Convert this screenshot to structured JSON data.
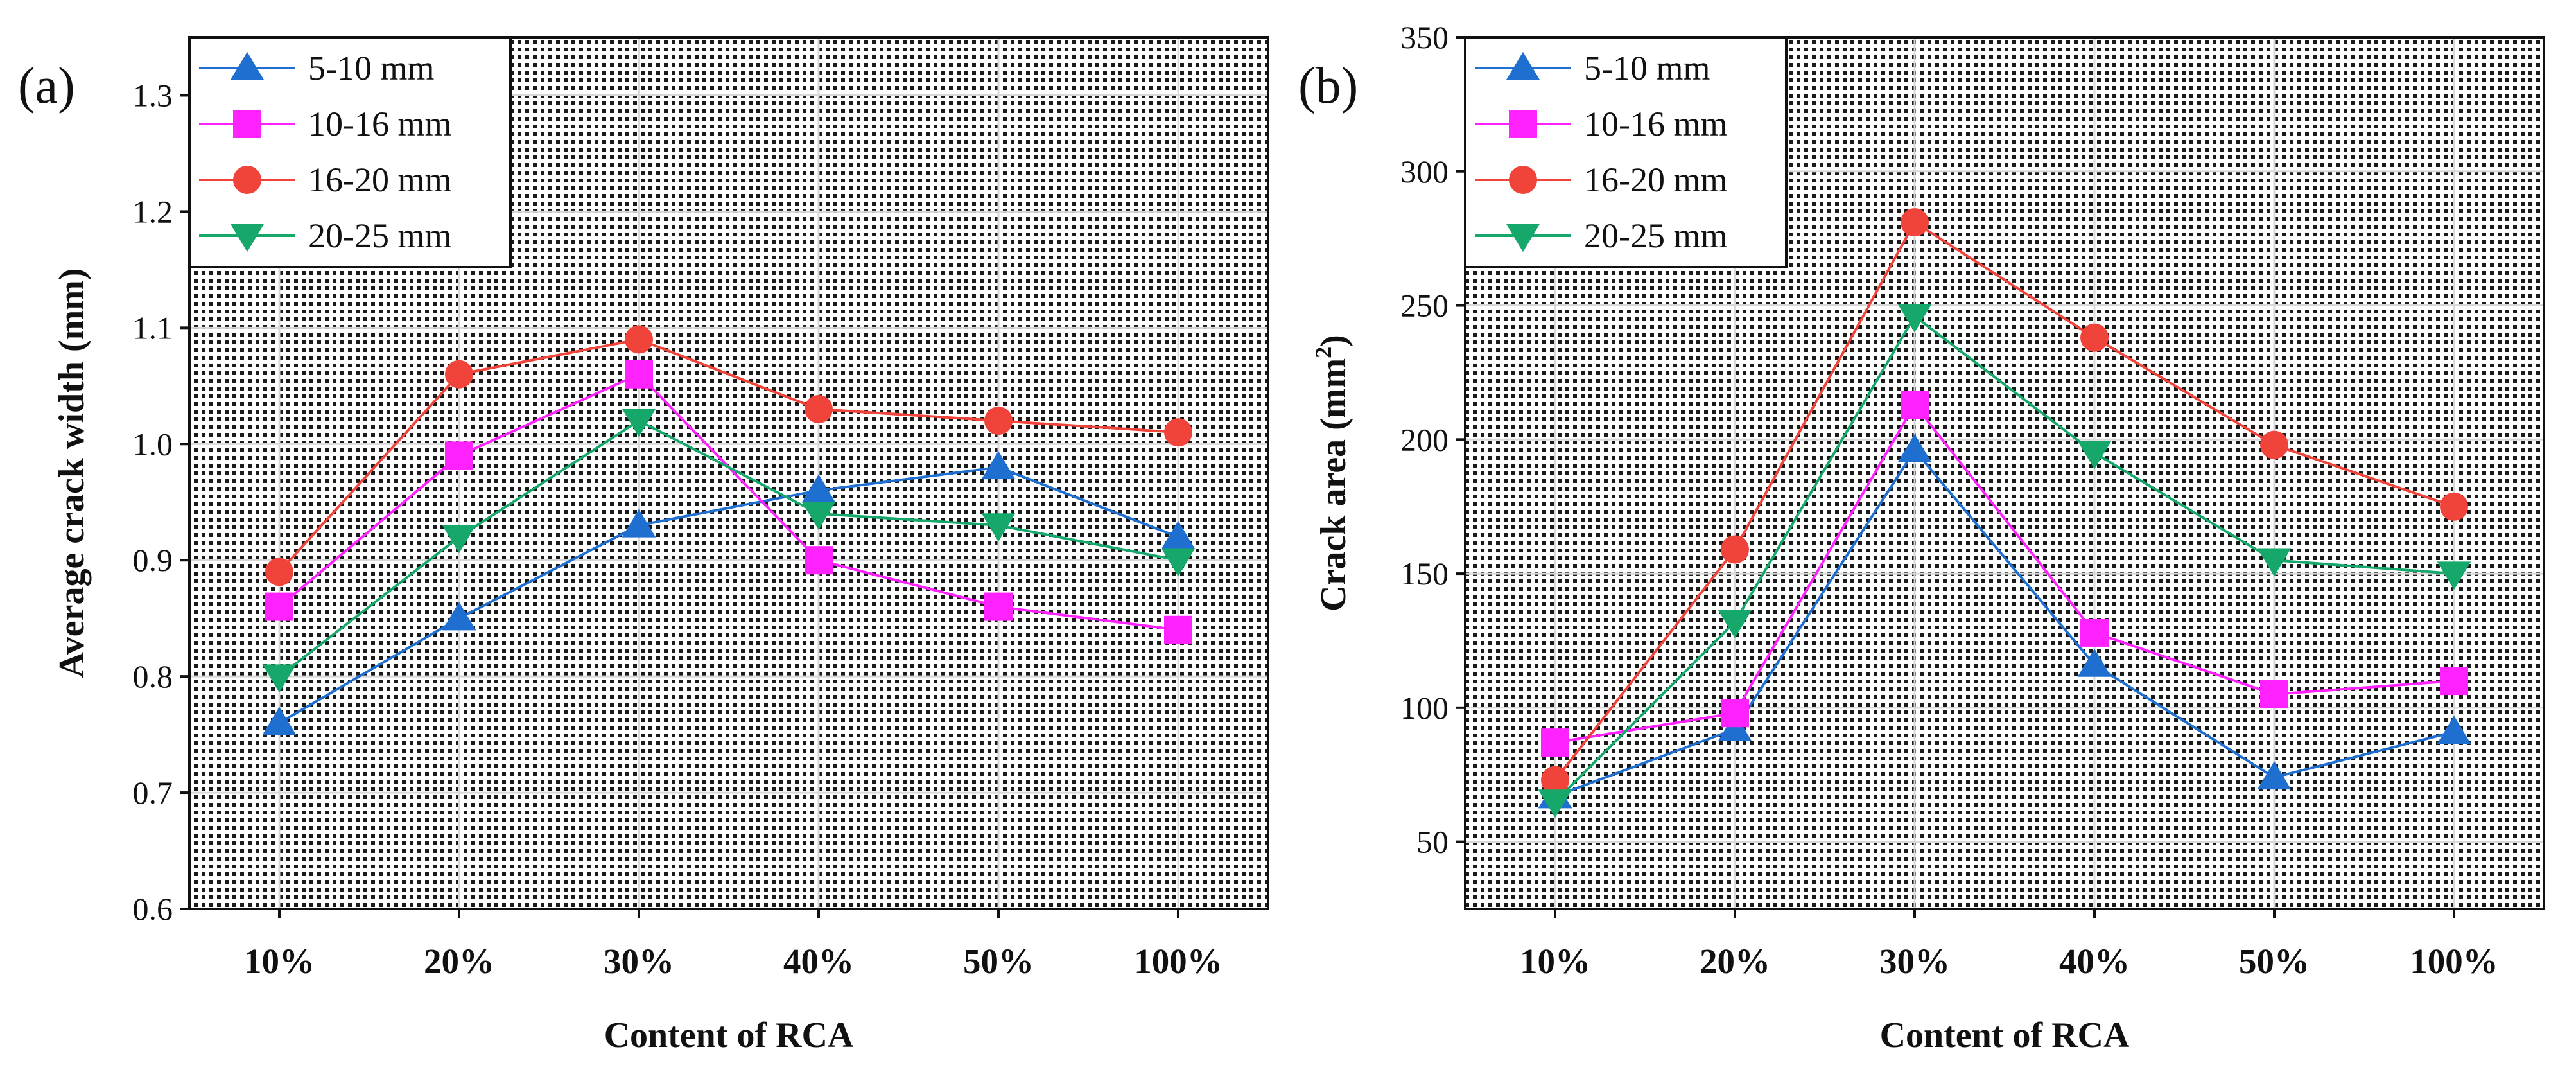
{
  "colors": {
    "5-10 mm": "#1f6fd1",
    "10-16 mm": "#ff22ff",
    "16-20 mm": "#f0433a",
    "20-25 mm": "#16a86a"
  },
  "chart_data": [
    {
      "type": "line",
      "panel": "(a)",
      "title": "",
      "xlabel": "Content of RCA",
      "ylabel": "Average crack width (mm)",
      "ylabel_unit_sup": "",
      "ylabel_tail": "",
      "categories": [
        "10%",
        "20%",
        "30%",
        "40%",
        "50%",
        "100%"
      ],
      "ylim": [
        0.6,
        1.35
      ],
      "yticks": [
        "0.6",
        "0.7",
        "0.8",
        "0.9",
        "1.0",
        "1.1",
        "1.2",
        "1.3"
      ],
      "legend": "top-left",
      "series": [
        {
          "name": "5-10 mm",
          "marker": "triangle-up",
          "values": [
            0.76,
            0.85,
            0.93,
            0.96,
            0.98,
            0.92
          ]
        },
        {
          "name": "10-16 mm",
          "marker": "square",
          "values": [
            0.86,
            0.99,
            1.06,
            0.9,
            0.86,
            0.84
          ]
        },
        {
          "name": "16-20 mm",
          "marker": "circle",
          "values": [
            0.89,
            1.06,
            1.09,
            1.03,
            1.02,
            1.01
          ]
        },
        {
          "name": "20-25 mm",
          "marker": "triangle-down",
          "values": [
            0.8,
            0.92,
            1.02,
            0.94,
            0.93,
            0.9
          ]
        }
      ]
    },
    {
      "type": "line",
      "panel": "(b)",
      "title": "",
      "xlabel": "Content of RCA",
      "ylabel": "Crack area (mm",
      "ylabel_unit_sup": "2",
      "ylabel_tail": ")",
      "categories": [
        "10%",
        "20%",
        "30%",
        "40%",
        "50%",
        "100%"
      ],
      "ylim": [
        25,
        350
      ],
      "yticks": [
        "50",
        "100",
        "150",
        "200",
        "250",
        "300",
        "350"
      ],
      "legend": "top-left",
      "series": [
        {
          "name": "5-10 mm",
          "marker": "triangle-up",
          "values": [
            67,
            92,
            196,
            116,
            74,
            91
          ]
        },
        {
          "name": "10-16 mm",
          "marker": "square",
          "values": [
            87,
            98,
            213,
            128,
            105,
            110
          ]
        },
        {
          "name": "16-20 mm",
          "marker": "circle",
          "values": [
            73,
            159,
            281,
            238,
            198,
            175
          ]
        },
        {
          "name": "20-25 mm",
          "marker": "triangle-down",
          "values": [
            65,
            132,
            246,
            195,
            155,
            150
          ]
        }
      ]
    }
  ]
}
